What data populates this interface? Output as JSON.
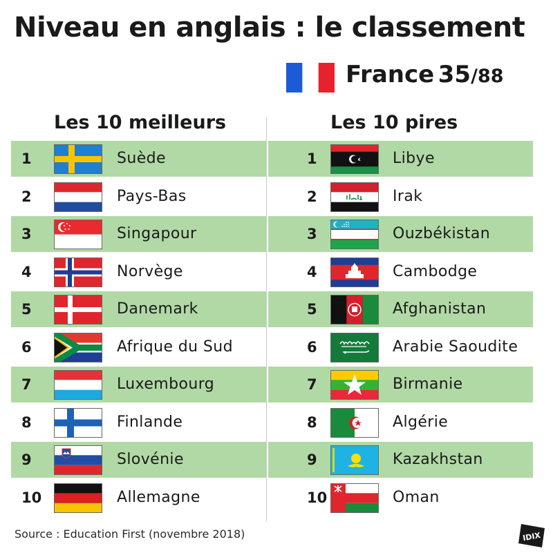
{
  "title": "Niveau en anglais : le classement",
  "france": {
    "name": "France",
    "rank": "35",
    "total": "/88"
  },
  "best": {
    "heading": "Les 10 meilleurs",
    "rows": [
      {
        "rank": "1",
        "country": "Suède",
        "flag": "sweden-flag-icon"
      },
      {
        "rank": "2",
        "country": "Pays-Bas",
        "flag": "netherlands-flag-icon"
      },
      {
        "rank": "3",
        "country": "Singapour",
        "flag": "singapore-flag-icon"
      },
      {
        "rank": "4",
        "country": "Norvège",
        "flag": "norway-flag-icon"
      },
      {
        "rank": "5",
        "country": "Danemark",
        "flag": "denmark-flag-icon"
      },
      {
        "rank": "6",
        "country": "Afrique du Sud",
        "flag": "south-africa-flag-icon"
      },
      {
        "rank": "7",
        "country": "Luxembourg",
        "flag": "luxembourg-flag-icon"
      },
      {
        "rank": "8",
        "country": "Finlande",
        "flag": "finland-flag-icon"
      },
      {
        "rank": "9",
        "country": "Slovénie",
        "flag": "slovenia-flag-icon"
      },
      {
        "rank": "10",
        "country": "Allemagne",
        "flag": "germany-flag-icon"
      }
    ]
  },
  "worst": {
    "heading": "Les 10 pires",
    "rows": [
      {
        "rank": "1",
        "country": "Libye",
        "flag": "libya-flag-icon"
      },
      {
        "rank": "2",
        "country": "Irak",
        "flag": "iraq-flag-icon"
      },
      {
        "rank": "3",
        "country": "Ouzbékistan",
        "flag": "uzbekistan-flag-icon"
      },
      {
        "rank": "4",
        "country": "Cambodge",
        "flag": "cambodia-flag-icon"
      },
      {
        "rank": "5",
        "country": "Afghanistan",
        "flag": "afghanistan-flag-icon"
      },
      {
        "rank": "6",
        "country": "Arabie Saoudite",
        "flag": "saudi-arabia-flag-icon"
      },
      {
        "rank": "7",
        "country": "Birmanie",
        "flag": "myanmar-flag-icon"
      },
      {
        "rank": "8",
        "country": "Algérie",
        "flag": "algeria-flag-icon"
      },
      {
        "rank": "9",
        "country": "Kazakhstan",
        "flag": "kazakhstan-flag-icon"
      },
      {
        "rank": "10",
        "country": "Oman",
        "flag": "oman-flag-icon"
      }
    ]
  },
  "source": "Source : Education First (novembre 2018)",
  "logo": {
    "text": "IDIX"
  },
  "colors": {
    "row_highlight": "#b1d9a5",
    "text": "#1a1a1a",
    "divider": "#c8c8c8"
  }
}
